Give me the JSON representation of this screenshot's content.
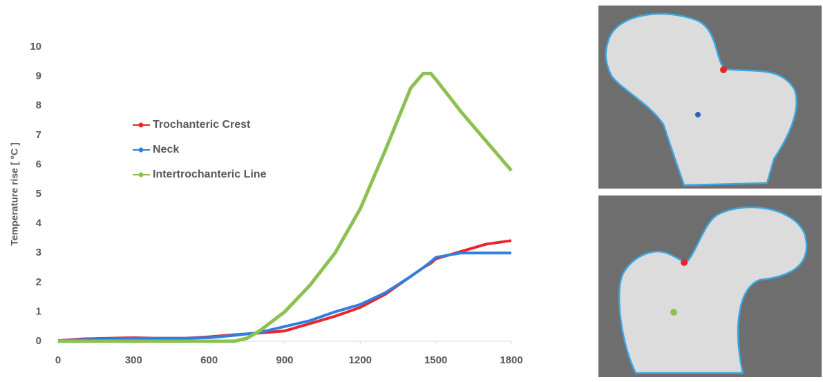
{
  "chart_data": {
    "type": "line",
    "y_label": "Temperature rise [ °C ]",
    "x": [
      0,
      100,
      200,
      300,
      400,
      500,
      600,
      700,
      750,
      800,
      900,
      1000,
      1100,
      1200,
      1300,
      1400,
      1450,
      1480,
      1500,
      1600,
      1700,
      1800
    ],
    "series": [
      {
        "name": "Trochanteric Crest",
        "color": "#e8262a",
        "values": [
          0.02,
          0.08,
          0.1,
          0.12,
          0.1,
          0.1,
          0.15,
          0.22,
          0.25,
          0.28,
          0.35,
          0.6,
          0.85,
          1.15,
          1.6,
          2.2,
          2.5,
          2.65,
          2.8,
          3.05,
          3.3,
          3.42
        ]
      },
      {
        "name": "Neck",
        "color": "#2f7fe0",
        "values": [
          0.02,
          0.05,
          0.08,
          0.1,
          0.1,
          0.1,
          0.12,
          0.2,
          0.25,
          0.3,
          0.5,
          0.7,
          1.0,
          1.25,
          1.65,
          2.2,
          2.5,
          2.7,
          2.85,
          3.0,
          3.0,
          3.0
        ]
      },
      {
        "name": "Intertrochanteric Line",
        "color": "#8cc152",
        "values": [
          0,
          0,
          0,
          0,
          0,
          0,
          0,
          0,
          0.1,
          0.35,
          1.0,
          1.9,
          3.0,
          4.5,
          6.5,
          8.6,
          9.1,
          9.1,
          8.9,
          7.8,
          6.8,
          5.8
        ]
      }
    ],
    "xlim": [
      0,
      1800
    ],
    "xticks": [
      0,
      300,
      600,
      900,
      1200,
      1500,
      1800
    ],
    "ylim": [
      0,
      10
    ],
    "yticks": [
      0,
      1,
      2,
      3,
      4,
      5,
      6,
      7,
      8,
      9,
      10
    ]
  }
}
